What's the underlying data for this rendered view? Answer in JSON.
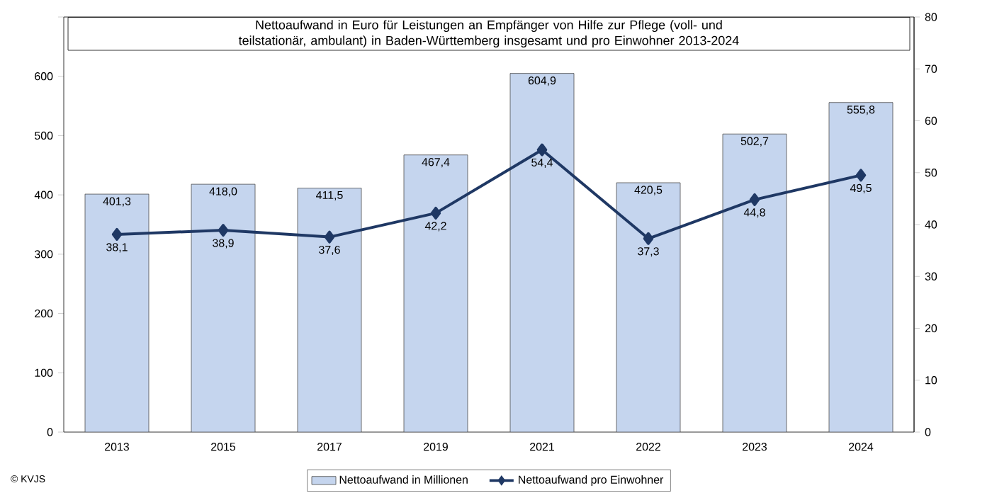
{
  "chart_data": {
    "type": "bar",
    "title": "Nettoaufwand in Euro für Leistungen an Empfänger von Hilfe zur Pflege (voll- und teilstationär, ambulant) in Baden-Württemberg insgesamt und pro Einwohner 2013-2024",
    "categories": [
      "2013",
      "2015",
      "2017",
      "2019",
      "2021",
      "2022",
      "2023",
      "2024"
    ],
    "series": [
      {
        "name": "Nettoaufwand in Millionen",
        "color": "#c5d5ee",
        "values": [
          401.3,
          418.0,
          411.5,
          467.4,
          604.9,
          420.5,
          502.7,
          555.8
        ],
        "value_labels": [
          "401,3",
          "418,0",
          "411,5",
          "467,4",
          "604,9",
          "420,5",
          "502,7",
          "555,8"
        ]
      },
      {
        "name": "Nettoaufwand pro Einwohner",
        "type": "line",
        "axis": "y2",
        "color": "#1f3864",
        "marker": "diamond",
        "values": [
          38.1,
          38.9,
          37.6,
          42.2,
          54.4,
          37.3,
          44.8,
          49.5
        ],
        "value_labels": [
          "38,1",
          "38,9",
          "37,6",
          "42,2",
          "54,4",
          "37,3",
          "44,8",
          "49,5"
        ]
      }
    ],
    "ylim": [
      0,
      700
    ],
    "yticks": [
      0,
      100,
      200,
      300,
      400,
      500,
      600,
      {
        "value": 700,
        "label": null
      }
    ],
    "y2lim": [
      0,
      80
    ],
    "y2ticks": [
      0,
      10,
      20,
      30,
      40,
      50,
      60,
      70,
      80
    ],
    "grid": false,
    "legend": "bottom",
    "annotations": [
      "© KVJS"
    ]
  }
}
